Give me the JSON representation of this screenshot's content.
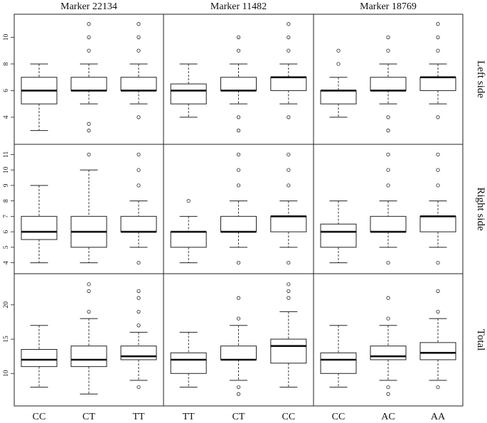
{
  "chart_data": {
    "type": "boxplot",
    "grid": false,
    "columns": [
      {
        "title": "Marker 22134",
        "categories": [
          "CC",
          "CT",
          "TT"
        ]
      },
      {
        "title": "Marker 11482",
        "categories": [
          "TT",
          "CT",
          "CC"
        ]
      },
      {
        "title": "Marker 18769",
        "categories": [
          "CC",
          "AC",
          "AA"
        ]
      }
    ],
    "rows": [
      {
        "label": "Left side",
        "ylim": [
          2.5,
          11.2
        ],
        "yticks": [
          4,
          6,
          8,
          10
        ]
      },
      {
        "label": "Right side",
        "ylim": [
          3.75,
          11.2
        ],
        "yticks": [
          4,
          5,
          6,
          7,
          8,
          9,
          10,
          11
        ]
      },
      {
        "label": "Total",
        "ylim": [
          6.3,
          23.5
        ],
        "yticks": [
          10,
          15,
          20
        ]
      }
    ],
    "boxes": [
      [
        [
          {
            "min": 3,
            "q1": 5,
            "median": 6,
            "q3": 7,
            "max": 8,
            "outliers": []
          },
          {
            "min": 5,
            "q1": 6,
            "median": 6,
            "q3": 7,
            "max": 8,
            "outliers": [
              3,
              3.5,
              9,
              10,
              11
            ]
          },
          {
            "min": 5,
            "q1": 6,
            "median": 6,
            "q3": 7,
            "max": 8,
            "outliers": [
              4,
              9,
              10,
              11
            ]
          }
        ],
        [
          {
            "min": 4,
            "q1": 5,
            "median": 6,
            "q3": 6.5,
            "max": 8,
            "outliers": []
          },
          {
            "min": 5,
            "q1": 6,
            "median": 6,
            "q3": 7,
            "max": 8,
            "outliers": [
              3,
              4,
              9,
              10
            ]
          },
          {
            "min": 5,
            "q1": 6,
            "median": 7,
            "q3": 7,
            "max": 8,
            "outliers": [
              4,
              9,
              10,
              11
            ]
          }
        ],
        [
          {
            "min": 4,
            "q1": 5,
            "median": 6,
            "q3": 6,
            "max": 7,
            "outliers": [
              8,
              9
            ]
          },
          {
            "min": 5,
            "q1": 6,
            "median": 6,
            "q3": 7,
            "max": 8,
            "outliers": [
              3,
              4,
              9,
              10
            ]
          },
          {
            "min": 5,
            "q1": 6,
            "median": 7,
            "q3": 7,
            "max": 8,
            "outliers": [
              4,
              9,
              10,
              11
            ]
          }
        ]
      ],
      [
        [
          {
            "min": 4,
            "q1": 5.5,
            "median": 6,
            "q3": 7,
            "max": 9,
            "outliers": []
          },
          {
            "min": 4,
            "q1": 5,
            "median": 6,
            "q3": 7,
            "max": 10,
            "outliers": [
              11
            ]
          },
          {
            "min": 5,
            "q1": 6,
            "median": 6,
            "q3": 7,
            "max": 8,
            "outliers": [
              4,
              9,
              10,
              11
            ]
          }
        ],
        [
          {
            "min": 4,
            "q1": 5,
            "median": 6,
            "q3": 6,
            "max": 7,
            "outliers": [
              8
            ]
          },
          {
            "min": 5,
            "q1": 6,
            "median": 6,
            "q3": 7,
            "max": 8,
            "outliers": [
              4,
              9,
              10,
              11
            ]
          },
          {
            "min": 5,
            "q1": 6,
            "median": 7,
            "q3": 7,
            "max": 8,
            "outliers": [
              4,
              9,
              10,
              11
            ]
          }
        ],
        [
          {
            "min": 4,
            "q1": 5,
            "median": 6,
            "q3": 6.5,
            "max": 8,
            "outliers": []
          },
          {
            "min": 5,
            "q1": 6,
            "median": 6,
            "q3": 7,
            "max": 8,
            "outliers": [
              4,
              9,
              10,
              11
            ]
          },
          {
            "min": 5,
            "q1": 6,
            "median": 7,
            "q3": 7,
            "max": 8,
            "outliers": [
              4,
              9,
              10,
              11
            ]
          }
        ]
      ],
      [
        [
          {
            "min": 8,
            "q1": 11,
            "median": 12,
            "q3": 13.5,
            "max": 17,
            "outliers": []
          },
          {
            "min": 7,
            "q1": 11,
            "median": 12,
            "q3": 14,
            "max": 18,
            "outliers": [
              19,
              22,
              23
            ]
          },
          {
            "min": 9,
            "q1": 12,
            "median": 12.5,
            "q3": 14,
            "max": 16,
            "outliers": [
              8,
              17,
              19,
              21,
              22
            ]
          }
        ],
        [
          {
            "min": 8,
            "q1": 10,
            "median": 12,
            "q3": 13,
            "max": 16,
            "outliers": []
          },
          {
            "min": 9,
            "q1": 12,
            "median": 12,
            "q3": 14,
            "max": 17,
            "outliers": [
              7,
              8,
              18,
              21
            ]
          },
          {
            "min": 8,
            "q1": 11.5,
            "median": 14,
            "q3": 15,
            "max": 19,
            "outliers": [
              21,
              22,
              23
            ]
          }
        ],
        [
          {
            "min": 8,
            "q1": 10,
            "median": 12,
            "q3": 13,
            "max": 17,
            "outliers": []
          },
          {
            "min": 9,
            "q1": 12,
            "median": 12.5,
            "q3": 14,
            "max": 17,
            "outliers": [
              7,
              8,
              18,
              21
            ]
          },
          {
            "min": 9,
            "q1": 12,
            "median": 13,
            "q3": 14.5,
            "max": 18,
            "outliers": [
              8,
              19,
              22
            ]
          }
        ]
      ]
    ]
  }
}
